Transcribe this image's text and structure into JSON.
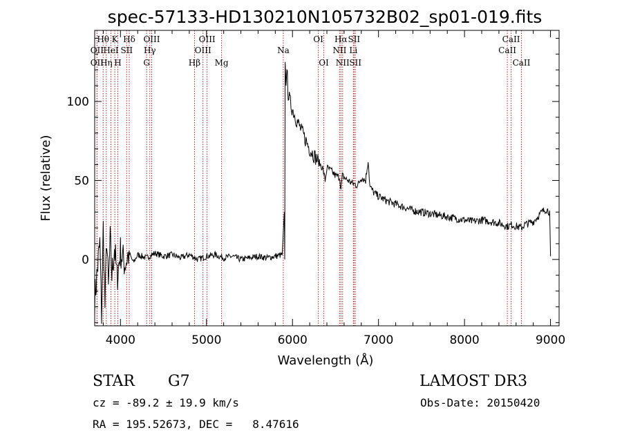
{
  "chart_data": {
    "type": "line",
    "title": "spec-57133-HD130210N105732B02_sp01-019.fits",
    "xlabel": "Wavelength (Å)",
    "ylabel": "Flux (relative)",
    "xlim": [
      3700,
      9100
    ],
    "ylim": [
      -42,
      145
    ],
    "x_ticks": [
      4000,
      5000,
      6000,
      7000,
      8000,
      9000
    ],
    "y_ticks": [
      0,
      50,
      100
    ],
    "grid": false,
    "line_color": "#000000",
    "marker_color": "#b02020",
    "series": [
      {
        "x": [
          3700,
          3760,
          3780,
          3800,
          3820,
          3840,
          3860,
          3880,
          3900,
          3930,
          3960,
          4000,
          4050,
          4100,
          4150,
          4200,
          4300,
          4400,
          4500,
          4600,
          4700,
          4800,
          4900,
          5000,
          5100,
          5200,
          5300,
          5400,
          5500,
          5600,
          5700,
          5800,
          5880,
          5905,
          5910,
          5915,
          5925,
          5935,
          5950,
          5970,
          6000,
          6050,
          6100,
          6150,
          6200,
          6250,
          6300,
          6350,
          6380,
          6400,
          6450,
          6500,
          6550,
          6563,
          6580,
          6620,
          6700,
          6760,
          6800,
          6850,
          6880,
          6900,
          6950,
          7000,
          7100,
          7200,
          7300,
          7400,
          7500,
          7600,
          7700,
          7800,
          7900,
          8000,
          8100,
          8200,
          8300,
          8400,
          8500,
          8550,
          8600,
          8660,
          8700,
          8800,
          8850,
          8900,
          8950,
          8990,
          9000
        ],
        "y": [
          -25,
          10,
          -35,
          20,
          -30,
          15,
          -20,
          12,
          -10,
          8,
          -12,
          5,
          -3,
          4,
          -2,
          3,
          1,
          4,
          2,
          3,
          1,
          3,
          0,
          2,
          3,
          1,
          2,
          0,
          1,
          2,
          1,
          2,
          3,
          30,
          0,
          125,
          110,
          120,
          105,
          100,
          95,
          88,
          82,
          76,
          70,
          66,
          62,
          58,
          50,
          58,
          56,
          53,
          52,
          44,
          53,
          51,
          48,
          47,
          52,
          50,
          63,
          46,
          42,
          40,
          37,
          35,
          33,
          31,
          30,
          29,
          28,
          27,
          26,
          25,
          24,
          25,
          24,
          23,
          21,
          22,
          21,
          20,
          22,
          24,
          27,
          30,
          32,
          30,
          2
        ]
      }
    ],
    "line_markers": [
      {
        "label": "Hθ",
        "x": 3798,
        "row": 1
      },
      {
        "label": "OII",
        "x": 3727,
        "row": 2
      },
      {
        "label": "OII",
        "x": 3727,
        "row": 3
      },
      {
        "label": "K",
        "x": 3934,
        "row": 1
      },
      {
        "label": "H",
        "x": 3969,
        "row": 3
      },
      {
        "label": "Hη",
        "x": 3835,
        "row": 3
      },
      {
        "label": "HeI",
        "x": 3889,
        "row": 2
      },
      {
        "label": "SII",
        "x": 4072,
        "row": 2
      },
      {
        "label": "Hδ",
        "x": 4102,
        "row": 1
      },
      {
        "label": "OIII",
        "x": 4363,
        "row": 1
      },
      {
        "label": "Hγ",
        "x": 4341,
        "row": 2
      },
      {
        "label": "G",
        "x": 4304,
        "row": 3
      },
      {
        "label": "OIII",
        "x": 5007,
        "row": 1
      },
      {
        "label": "OIII",
        "x": 4959,
        "row": 2
      },
      {
        "label": "Hβ",
        "x": 4861,
        "row": 3
      },
      {
        "label": "Mg",
        "x": 5175,
        "row": 3
      },
      {
        "label": "Na",
        "x": 5893,
        "row": 2
      },
      {
        "label": "OI",
        "x": 6300,
        "row": 1
      },
      {
        "label": "OI",
        "x": 6364,
        "row": 3
      },
      {
        "label": "Hα",
        "x": 6563,
        "row": 1
      },
      {
        "label": "SII",
        "x": 6716,
        "row": 1
      },
      {
        "label": "NII",
        "x": 6548,
        "row": 2
      },
      {
        "label": "Li",
        "x": 6708,
        "row": 2
      },
      {
        "label": "NII",
        "x": 6583,
        "row": 3
      },
      {
        "label": "SII",
        "x": 6731,
        "row": 3
      },
      {
        "label": "CaII",
        "x": 8542,
        "row": 1
      },
      {
        "label": "CaII",
        "x": 8498,
        "row": 2
      },
      {
        "label": "CaII",
        "x": 8662,
        "row": 3
      }
    ]
  },
  "info": {
    "class": "STAR",
    "subclass": "G7",
    "survey": "LAMOST DR3",
    "cz": "cz = -89.2 ± 19.9 km/s",
    "obs_date": "Obs-Date: 20150420",
    "coords": "RA = 195.52673, DEC =   8.47616"
  }
}
